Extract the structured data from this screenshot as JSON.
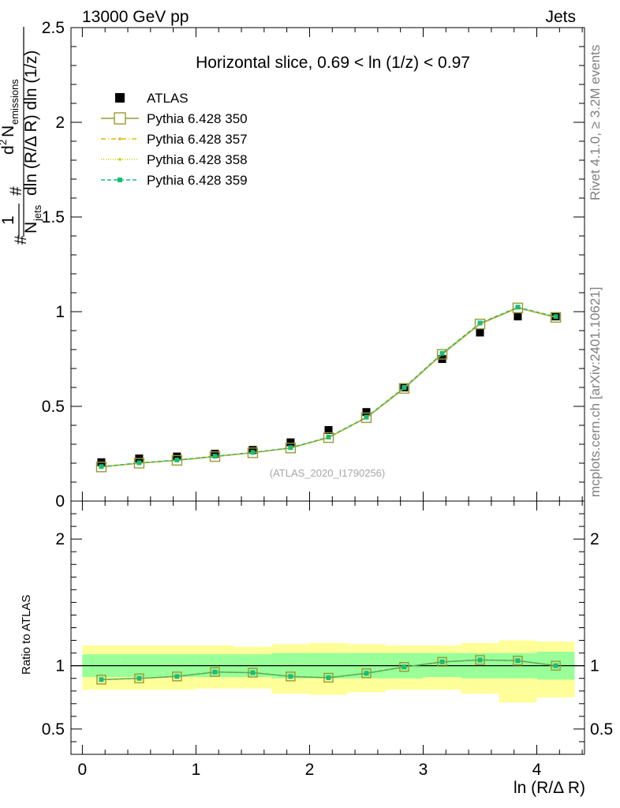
{
  "header": {
    "left": "13000 GeV pp",
    "right": "Jets"
  },
  "side_labels": {
    "rivet": "Rivet 4.1.0, ≥ 3.2M events",
    "mcplots": "mcplots.cern.ch [arXiv:2401.10621]"
  },
  "watermark": "(ATLAS_2020_I1790256)",
  "chart_data": {
    "type": "scatter",
    "title": "Horizontal slice, 0.69 < ln (1/z) < 0.97",
    "xlabel": "ln (R/Δ R)",
    "ylabel_main": "1/N_jets d²N_emissions / dln (R/Δ R) dln (1/z)",
    "ylabel_parts": {
      "one": "1",
      "njets": "N",
      "njets_sub": "jets",
      "d2n": "d",
      "d2n_sup": "2",
      "nemis": "N",
      "nemis_sub": "emissions",
      "denominator": "dln (R/Δ R) dln (1/z)",
      "hash": "#"
    },
    "ylabel_ratio": "Ratio to ATLAS",
    "xlim": [
      -0.1,
      4.42
    ],
    "ylim_main": [
      0,
      2.5
    ],
    "ylim_ratio": [
      0.3,
      2.3
    ],
    "x_ticks": [
      "0",
      "1",
      "2",
      "3",
      "4"
    ],
    "main_y_ticks": [
      "0",
      "0.5",
      "1",
      "1.5",
      "2",
      "2.5"
    ],
    "ratio_y_ticks": [
      "0.5",
      "1",
      "2"
    ],
    "bin_edges": [
      0,
      0.333,
      0.667,
      1.0,
      1.333,
      1.667,
      2.0,
      2.333,
      2.667,
      3.0,
      3.333,
      3.667,
      4.0,
      4.333
    ],
    "x": [
      0.167,
      0.5,
      0.833,
      1.167,
      1.5,
      1.833,
      2.167,
      2.5,
      2.833,
      3.167,
      3.5,
      3.833,
      4.167
    ],
    "series": [
      {
        "name": "ATLAS",
        "values": [
          0.205,
          0.225,
          0.235,
          0.25,
          0.27,
          0.31,
          0.375,
          0.47,
          0.6,
          0.75,
          0.89,
          0.975,
          0.975
        ],
        "color": "#000000",
        "style": "data"
      },
      {
        "name": "Pythia 6.428 350",
        "values": [
          0.18,
          0.2,
          0.215,
          0.235,
          0.255,
          0.28,
          0.335,
          0.44,
          0.595,
          0.775,
          0.935,
          1.02,
          0.97
        ],
        "color": "#999933",
        "style": "open-square"
      },
      {
        "name": "Pythia 6.428 357",
        "values": [
          0.181,
          0.201,
          0.216,
          0.236,
          0.256,
          0.281,
          0.337,
          0.442,
          0.598,
          0.778,
          0.938,
          1.022,
          0.972
        ],
        "color": "#e6b800",
        "style": "dashdot"
      },
      {
        "name": "Pythia 6.428 358",
        "values": [
          0.181,
          0.201,
          0.216,
          0.236,
          0.256,
          0.281,
          0.337,
          0.442,
          0.598,
          0.778,
          0.938,
          1.022,
          0.972
        ],
        "color": "#cccc00",
        "style": "dotted"
      },
      {
        "name": "Pythia 6.428 359",
        "values": [
          0.182,
          0.202,
          0.217,
          0.237,
          0.257,
          0.282,
          0.338,
          0.443,
          0.6,
          0.78,
          0.94,
          1.024,
          0.974
        ],
        "color": "#1abc78",
        "style": "dashed-square"
      }
    ],
    "ratio": {
      "values": [
        0.89,
        0.9,
        0.915,
        0.95,
        0.945,
        0.915,
        0.905,
        0.94,
        0.99,
        1.03,
        1.045,
        1.04,
        1.0
      ],
      "band_inner_lo": [
        0.91,
        0.91,
        0.91,
        0.91,
        0.91,
        0.9,
        0.9,
        0.9,
        0.9,
        0.91,
        0.9,
        0.9,
        0.89
      ],
      "band_inner_hi": [
        1.09,
        1.09,
        1.09,
        1.09,
        1.09,
        1.1,
        1.1,
        1.1,
        1.1,
        1.1,
        1.1,
        1.1,
        1.11
      ],
      "band_outer_lo": [
        0.81,
        0.81,
        0.81,
        0.82,
        0.82,
        0.78,
        0.77,
        0.79,
        0.81,
        0.81,
        0.78,
        0.71,
        0.75
      ],
      "band_outer_hi": [
        1.16,
        1.16,
        1.16,
        1.16,
        1.15,
        1.17,
        1.18,
        1.17,
        1.16,
        1.16,
        1.18,
        1.2,
        1.19
      ]
    },
    "legend": [
      "ATLAS",
      "Pythia 6.428 350",
      "Pythia 6.428 357",
      "Pythia 6.428 358",
      "Pythia 6.428 359"
    ]
  }
}
